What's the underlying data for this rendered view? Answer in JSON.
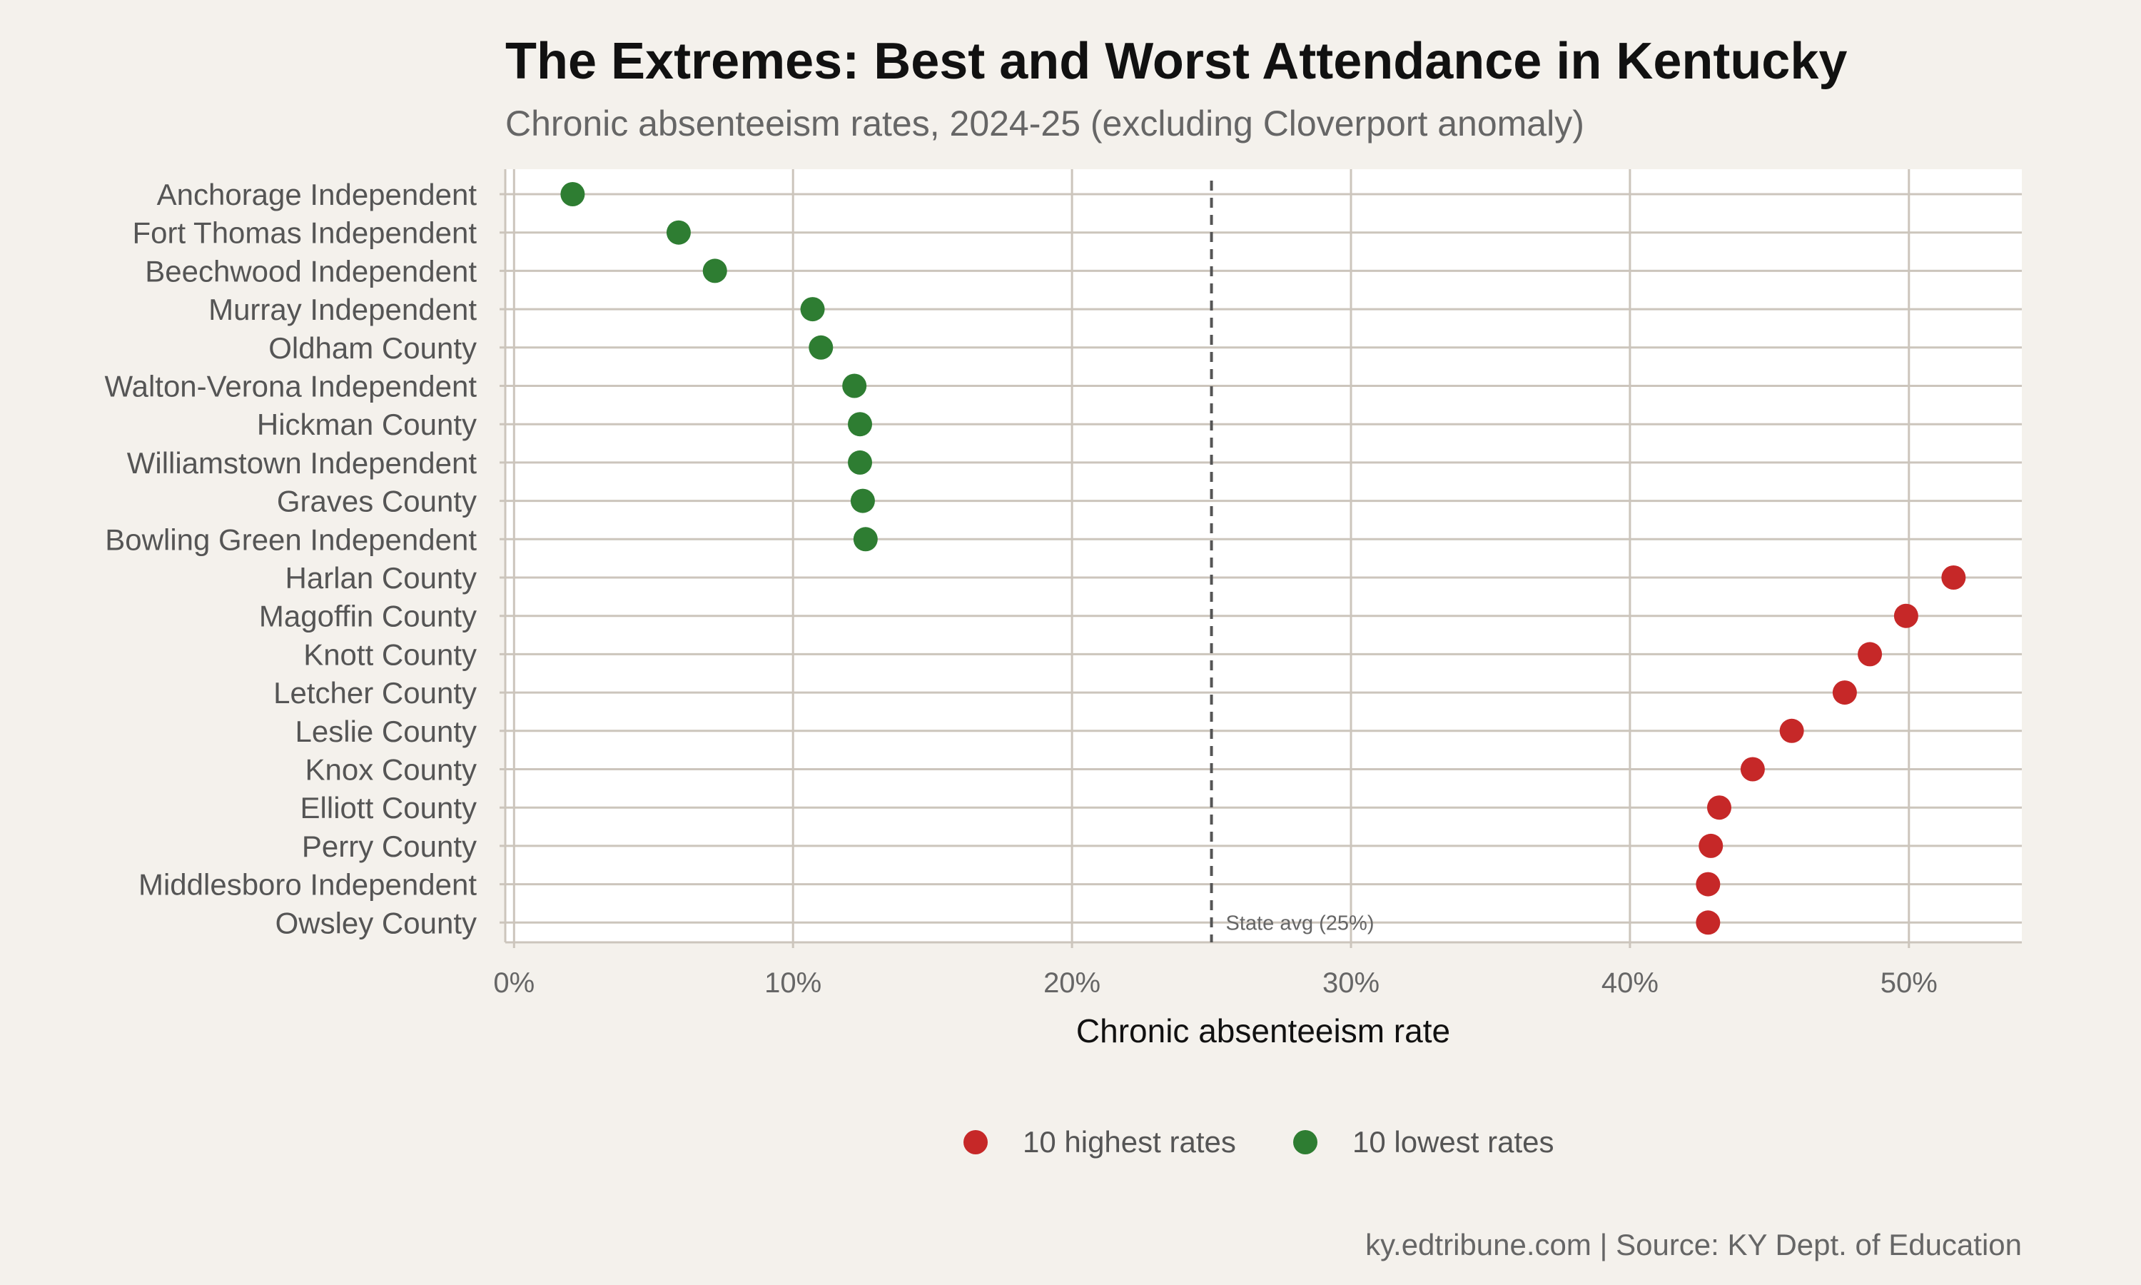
{
  "chart_data": {
    "type": "scatter",
    "title": "The Extremes: Best and Worst Attendance in Kentucky",
    "subtitle": "Chronic absenteeism rates, 2024-25 (excluding Cloverport anomaly)",
    "xlabel": "Chronic absenteeism rate",
    "ylabel": "",
    "xlim": [
      0,
      54
    ],
    "x_ticks": [
      0,
      10,
      20,
      30,
      40,
      50
    ],
    "x_tick_labels": [
      "0%",
      "10%",
      "20%",
      "30%",
      "40%",
      "50%"
    ],
    "grid": true,
    "legend_position": "bottom",
    "reference_line": {
      "value": 25,
      "label": "State avg (25%)",
      "style": "dashed",
      "color": "#555555"
    },
    "series": [
      {
        "name": "10 highest rates",
        "color": "#c62828"
      },
      {
        "name": "10 lowest rates",
        "color": "#2e7d32"
      }
    ],
    "points": [
      {
        "district": "Anchorage Independent",
        "value": 2.1,
        "group": "10 lowest rates"
      },
      {
        "district": "Fort Thomas Independent",
        "value": 5.9,
        "group": "10 lowest rates"
      },
      {
        "district": "Beechwood Independent",
        "value": 7.2,
        "group": "10 lowest rates"
      },
      {
        "district": "Murray Independent",
        "value": 10.7,
        "group": "10 lowest rates"
      },
      {
        "district": "Oldham County",
        "value": 11.0,
        "group": "10 lowest rates"
      },
      {
        "district": "Walton-Verona Independent",
        "value": 12.2,
        "group": "10 lowest rates"
      },
      {
        "district": "Hickman County",
        "value": 12.4,
        "group": "10 lowest rates"
      },
      {
        "district": "Williamstown Independent",
        "value": 12.4,
        "group": "10 lowest rates"
      },
      {
        "district": "Graves County",
        "value": 12.5,
        "group": "10 lowest rates"
      },
      {
        "district": "Bowling Green Independent",
        "value": 12.6,
        "group": "10 lowest rates"
      },
      {
        "district": "Harlan County",
        "value": 51.6,
        "group": "10 highest rates"
      },
      {
        "district": "Magoffin County",
        "value": 49.9,
        "group": "10 highest rates"
      },
      {
        "district": "Knott County",
        "value": 48.6,
        "group": "10 highest rates"
      },
      {
        "district": "Letcher County",
        "value": 47.7,
        "group": "10 highest rates"
      },
      {
        "district": "Leslie County",
        "value": 45.8,
        "group": "10 highest rates"
      },
      {
        "district": "Knox County",
        "value": 44.4,
        "group": "10 highest rates"
      },
      {
        "district": "Elliott County",
        "value": 43.2,
        "group": "10 highest rates"
      },
      {
        "district": "Perry County",
        "value": 42.9,
        "group": "10 highest rates"
      },
      {
        "district": "Middlesboro Independent",
        "value": 42.8,
        "group": "10 highest rates"
      },
      {
        "district": "Owsley County",
        "value": 42.8,
        "group": "10 highest rates"
      }
    ],
    "caption": "ky.edtribune.com | Source: KY Dept. of Education"
  },
  "colors": {
    "background": "#f4f1ec",
    "panel": "#ffffff",
    "grid": "#ccc5bc"
  }
}
